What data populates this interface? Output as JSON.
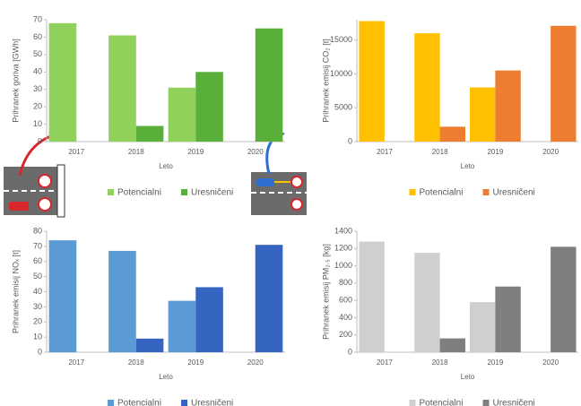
{
  "chart_data": [
    {
      "type": "bar",
      "y_label": "Prihranek goriva [GWh]",
      "x_label": "Leto",
      "categories": [
        "2017",
        "2018",
        "2019",
        "2020"
      ],
      "series": [
        {
          "name": "Potencialni",
          "color": "#8fd15a",
          "values": [
            68,
            61,
            31,
            null
          ]
        },
        {
          "name": "Uresničeni",
          "color": "#5aaf3a",
          "values": [
            null,
            9,
            40,
            65
          ]
        }
      ],
      "ylim": [
        0,
        70
      ],
      "yticks": [
        0,
        10,
        20,
        30,
        40,
        50,
        60,
        70
      ]
    },
    {
      "type": "bar",
      "y_label": "Prihranek emisij CO₂ [t]",
      "x_label": "Leto",
      "categories": [
        "2017",
        "2018",
        "2019",
        "2020"
      ],
      "series": [
        {
          "name": "Potencialni",
          "color": "#ffc000",
          "values": [
            17800,
            16000,
            8000,
            null
          ]
        },
        {
          "name": "Uresničeni",
          "color": "#ed7d31",
          "values": [
            null,
            2200,
            10500,
            17100
          ]
        }
      ],
      "ylim": [
        0,
        18000
      ],
      "yticks": [
        0,
        5000,
        10000,
        15000
      ]
    },
    {
      "type": "bar",
      "y_label": "Prihranek emisij NOₓ [t]",
      "x_label": "Leto",
      "categories": [
        "2017",
        "2018",
        "2019",
        "2020"
      ],
      "series": [
        {
          "name": "Potencialni",
          "color": "#5b9bd5",
          "values": [
            74,
            67,
            34,
            null
          ]
        },
        {
          "name": "Uresničeni",
          "color": "#3565c0",
          "values": [
            null,
            9,
            43,
            71
          ]
        }
      ],
      "ylim": [
        0,
        80
      ],
      "yticks": [
        0,
        10,
        20,
        30,
        40,
        50,
        60,
        70,
        80
      ]
    },
    {
      "type": "bar",
      "y_label": "Prihranek emisij PM₂.₅ [kg]",
      "x_label": "Leto",
      "categories": [
        "2017",
        "2018",
        "2019",
        "2020"
      ],
      "series": [
        {
          "name": "Potencialni",
          "color": "#cfcfcf",
          "values": [
            1280,
            1150,
            580,
            null
          ]
        },
        {
          "name": "Uresničeni",
          "color": "#7f7f7f",
          "values": [
            null,
            160,
            760,
            1220
          ]
        }
      ],
      "ylim": [
        0,
        1400
      ],
      "yticks": [
        0,
        200,
        400,
        600,
        800,
        1000,
        1200,
        1400
      ]
    }
  ]
}
